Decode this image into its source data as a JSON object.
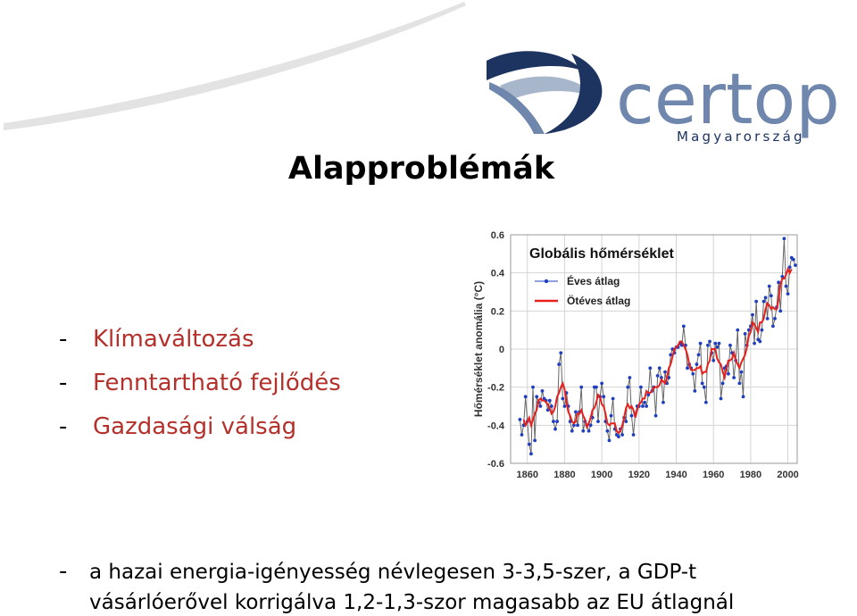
{
  "slide": {
    "title": "Alapproblémák",
    "logo": {
      "name": "certop",
      "subtitle": "Magyarország"
    },
    "bullet_marker": "-",
    "bullets": [
      "Klímaváltozás",
      "Fenntartható fejlődés",
      "Gazdasági válság"
    ],
    "note": [
      "a hazai energia-igényesség névlegesen 3-3,5-szer, a GDP-t",
      "vásárlóerővel korrigálva 1,2-1,3-szor magasabb az EU átlagnál"
    ]
  },
  "chart_data": {
    "type": "line",
    "title": "Globális hőmérséklet",
    "y_label": "Hőmérséklet anomália (°C)",
    "xlim": [
      1851,
      2005
    ],
    "ylim": [
      -0.6,
      0.6
    ],
    "xticks": [
      1860,
      1880,
      1900,
      1920,
      1940,
      1960,
      1980,
      2000
    ],
    "yticks": [
      -0.6,
      -0.4,
      -0.2,
      0,
      0.2,
      0.4,
      0.6
    ],
    "grid": true,
    "legend": "upper left",
    "x": [
      1856,
      1857,
      1858,
      1859,
      1860,
      1861,
      1862,
      1863,
      1864,
      1865,
      1866,
      1867,
      1868,
      1869,
      1870,
      1871,
      1872,
      1873,
      1874,
      1875,
      1876,
      1877,
      1878,
      1879,
      1880,
      1881,
      1882,
      1883,
      1884,
      1885,
      1886,
      1887,
      1888,
      1889,
      1890,
      1891,
      1892,
      1893,
      1894,
      1895,
      1896,
      1897,
      1898,
      1899,
      1900,
      1901,
      1902,
      1903,
      1904,
      1905,
      1906,
      1907,
      1908,
      1909,
      1910,
      1911,
      1912,
      1913,
      1914,
      1915,
      1916,
      1917,
      1918,
      1919,
      1920,
      1921,
      1922,
      1923,
      1924,
      1925,
      1926,
      1927,
      1928,
      1929,
      1930,
      1931,
      1932,
      1933,
      1934,
      1935,
      1936,
      1937,
      1938,
      1939,
      1940,
      1941,
      1942,
      1943,
      1944,
      1945,
      1946,
      1947,
      1948,
      1949,
      1950,
      1951,
      1952,
      1953,
      1954,
      1955,
      1956,
      1957,
      1958,
      1959,
      1960,
      1961,
      1962,
      1963,
      1964,
      1965,
      1966,
      1967,
      1968,
      1969,
      1970,
      1971,
      1972,
      1973,
      1974,
      1975,
      1976,
      1977,
      1978,
      1979,
      1980,
      1981,
      1982,
      1983,
      1984,
      1985,
      1986,
      1987,
      1988,
      1989,
      1990,
      1991,
      1992,
      1993,
      1994,
      1995,
      1996,
      1997,
      1998,
      1999,
      2000,
      2001,
      2002,
      2003,
      2004
    ],
    "series": [
      {
        "name": "Éves átlag",
        "color": "#1f3fbf",
        "line_color": "#666666",
        "marker": "dot",
        "values": [
          -0.37,
          -0.45,
          -0.4,
          -0.25,
          -0.38,
          -0.5,
          -0.55,
          -0.2,
          -0.48,
          -0.25,
          -0.28,
          -0.3,
          -0.22,
          -0.26,
          -0.27,
          -0.32,
          -0.27,
          -0.3,
          -0.38,
          -0.42,
          -0.38,
          -0.08,
          -0.02,
          -0.26,
          -0.3,
          -0.23,
          -0.3,
          -0.38,
          -0.43,
          -0.4,
          -0.33,
          -0.4,
          -0.33,
          -0.2,
          -0.43,
          -0.38,
          -0.4,
          -0.43,
          -0.4,
          -0.36,
          -0.2,
          -0.2,
          -0.38,
          -0.25,
          -0.18,
          -0.25,
          -0.38,
          -0.43,
          -0.48,
          -0.35,
          -0.26,
          -0.42,
          -0.45,
          -0.46,
          -0.42,
          -0.45,
          -0.36,
          -0.38,
          -0.2,
          -0.15,
          -0.35,
          -0.45,
          -0.34,
          -0.3,
          -0.3,
          -0.2,
          -0.3,
          -0.28,
          -0.3,
          -0.24,
          -0.1,
          -0.22,
          -0.2,
          -0.35,
          -0.14,
          -0.1,
          -0.15,
          -0.28,
          -0.12,
          -0.18,
          -0.15,
          -0.03,
          0.0,
          -0.02,
          0.01,
          0.01,
          0.03,
          0.02,
          0.12,
          0.02,
          -0.1,
          -0.08,
          -0.1,
          -0.13,
          -0.22,
          -0.08,
          -0.03,
          0.03,
          -0.18,
          -0.2,
          -0.28,
          0.02,
          0.04,
          -0.02,
          -0.06,
          0.03,
          0.01,
          0.03,
          -0.26,
          -0.18,
          -0.1,
          -0.09,
          -0.13,
          0.02,
          -0.02,
          -0.15,
          -0.06,
          0.1,
          -0.18,
          -0.12,
          -0.25,
          0.08,
          0.02,
          0.1,
          0.12,
          0.18,
          0.03,
          0.25,
          0.05,
          0.04,
          0.1,
          0.25,
          0.27,
          0.16,
          0.33,
          0.28,
          0.12,
          0.16,
          0.22,
          0.35,
          0.2,
          0.38,
          0.58,
          0.33,
          0.29,
          0.43,
          0.48,
          0.47,
          0.44
        ]
      },
      {
        "name": "Ötéves átlag",
        "color": "#e8201c",
        "values": [
          null,
          null,
          -0.37,
          -0.4,
          -0.38,
          -0.36,
          -0.4,
          -0.37,
          -0.34,
          -0.32,
          -0.27,
          -0.26,
          -0.27,
          -0.27,
          -0.28,
          -0.29,
          -0.31,
          -0.34,
          -0.33,
          -0.3,
          -0.25,
          -0.23,
          -0.2,
          -0.18,
          -0.21,
          -0.28,
          -0.33,
          -0.35,
          -0.38,
          -0.39,
          -0.38,
          -0.34,
          -0.34,
          -0.32,
          -0.35,
          -0.37,
          -0.41,
          -0.39,
          -0.36,
          -0.32,
          -0.31,
          -0.28,
          -0.24,
          -0.25,
          -0.29,
          -0.3,
          -0.34,
          -0.39,
          -0.4,
          -0.39,
          -0.39,
          -0.39,
          -0.43,
          -0.44,
          -0.43,
          -0.4,
          -0.36,
          -0.31,
          -0.29,
          -0.31,
          -0.3,
          -0.32,
          -0.36,
          -0.32,
          -0.29,
          -0.28,
          -0.26,
          -0.26,
          -0.22,
          -0.23,
          -0.23,
          -0.22,
          -0.2,
          -0.2,
          -0.2,
          -0.19,
          -0.16,
          -0.17,
          -0.18,
          -0.15,
          -0.1,
          -0.08,
          -0.04,
          0.0,
          0.01,
          0.02,
          0.04,
          0.04,
          0.02,
          0.0,
          -0.03,
          -0.08,
          -0.11,
          -0.11,
          -0.11,
          -0.1,
          -0.1,
          -0.09,
          -0.13,
          -0.12,
          -0.12,
          -0.08,
          -0.06,
          0.0,
          0.0,
          0.0,
          -0.05,
          -0.07,
          -0.08,
          -0.12,
          -0.15,
          -0.1,
          -0.06,
          -0.06,
          -0.05,
          -0.02,
          -0.06,
          -0.08,
          -0.1,
          -0.07,
          -0.05,
          -0.03,
          0.01,
          0.07,
          0.09,
          0.14,
          0.13,
          0.11,
          0.09,
          0.14,
          0.14,
          0.16,
          0.21,
          0.24,
          0.23,
          0.21,
          0.22,
          0.21,
          0.21,
          0.26,
          0.34,
          0.37,
          0.37,
          0.39,
          0.42,
          0.4,
          0.42,
          null,
          null
        ]
      }
    ]
  }
}
